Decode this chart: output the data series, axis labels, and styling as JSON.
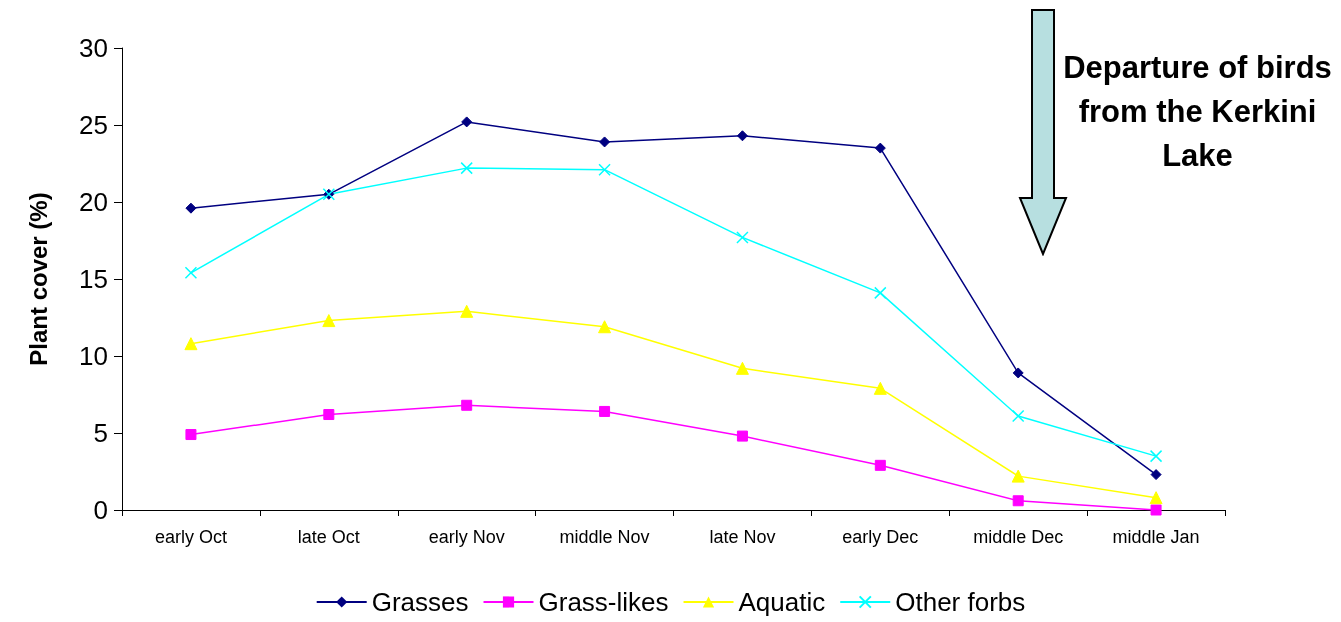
{
  "chart_data": {
    "type": "line",
    "ylabel": "Plant cover (%)",
    "categories": [
      "early Oct",
      "late Oct",
      "early Nov",
      "middle Nov",
      "late Nov",
      "early Dec",
      "middle Dec",
      "middle Jan"
    ],
    "series": [
      {
        "name": "Grasses",
        "color": "#000080",
        "marker": "diamond",
        "values": [
          19.6,
          20.5,
          25.2,
          23.9,
          24.3,
          23.5,
          8.9,
          2.3
        ]
      },
      {
        "name": "Grass-likes",
        "color": "#ff00ff",
        "marker": "square",
        "values": [
          4.9,
          6.2,
          6.8,
          6.4,
          4.8,
          2.9,
          0.6,
          0
        ]
      },
      {
        "name": "Aquatic",
        "color": "#ffff00",
        "marker": "triangle",
        "values": [
          10.8,
          12.3,
          12.9,
          11.9,
          9.2,
          7.9,
          2.2,
          0.8
        ]
      },
      {
        "name": "Other forbs",
        "color": "#00ffff",
        "marker": "cross",
        "values": [
          15.4,
          20.5,
          22.2,
          22.1,
          17.7,
          14.1,
          6.1,
          3.5
        ]
      }
    ],
    "ylim": [
      0,
      30
    ],
    "yticks": [
      0,
      5,
      10,
      15,
      20,
      25,
      30
    ],
    "grid": false,
    "legend": "bottom",
    "line_style": "solid",
    "annotations": [
      "Departure of birds from the Kerkini Lake"
    ]
  }
}
